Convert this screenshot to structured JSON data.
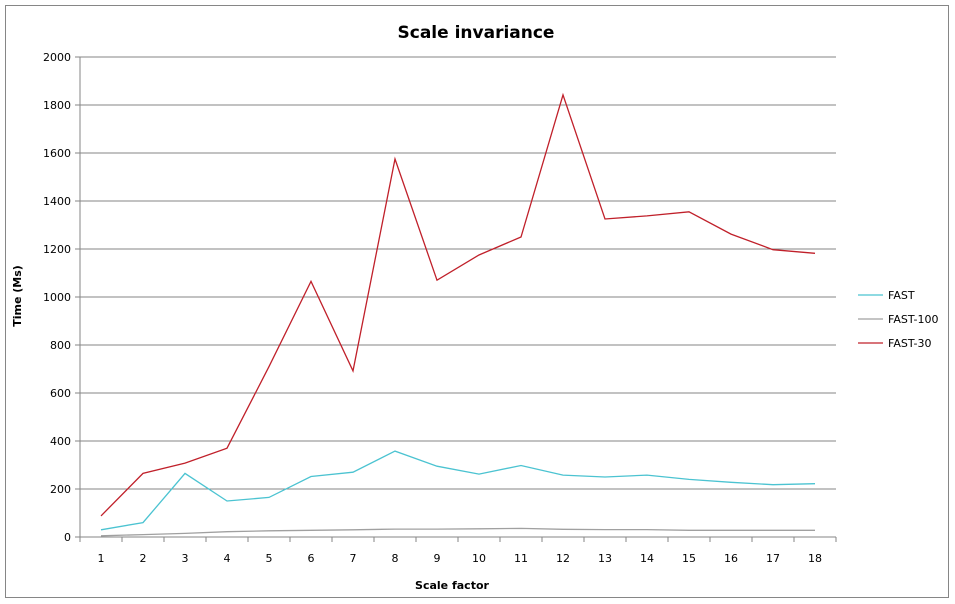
{
  "chart_data": {
    "type": "line",
    "title": "Scale invariance",
    "xlabel": "Scale factor",
    "ylabel": "Time (Ms)",
    "x": [
      1,
      2,
      3,
      4,
      5,
      6,
      7,
      8,
      9,
      10,
      11,
      12,
      13,
      14,
      15,
      16,
      17,
      18
    ],
    "ylim": [
      0,
      2000
    ],
    "yticks": [
      0,
      200,
      400,
      600,
      800,
      1000,
      1200,
      1400,
      1600,
      1800,
      2000
    ],
    "grid": true,
    "legend_position": "right",
    "series": [
      {
        "name": "FAST",
        "color": "#4bc3d1",
        "values": [
          30,
          60,
          265,
          150,
          165,
          252,
          270,
          358,
          295,
          262,
          298,
          258,
          250,
          258,
          240,
          228,
          218,
          222
        ]
      },
      {
        "name": "FAST-100",
        "color": "#a0a0a0",
        "values": [
          5,
          10,
          15,
          22,
          26,
          28,
          30,
          33,
          33,
          34,
          36,
          32,
          31,
          31,
          28,
          28,
          28,
          28
        ]
      },
      {
        "name": "FAST-30",
        "color": "#c0202a",
        "values": [
          88,
          265,
          308,
          370,
          710,
          1065,
          692,
          1575,
          1070,
          1175,
          1250,
          1842,
          1325,
          1338,
          1355,
          1262,
          1197,
          1182
        ]
      }
    ]
  }
}
